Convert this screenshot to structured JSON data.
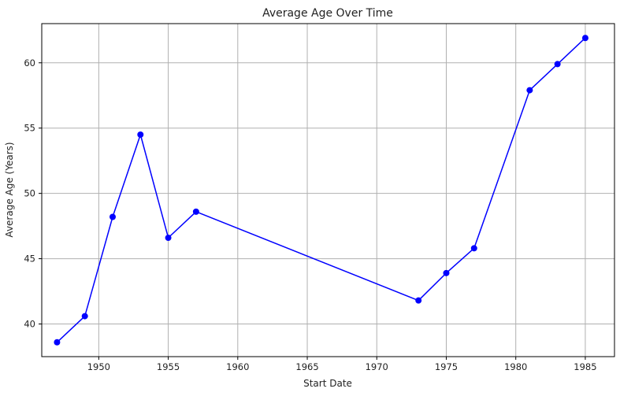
{
  "chart_data": {
    "type": "line",
    "title": "Average Age Over Time",
    "xlabel": "Start Date",
    "ylabel": "Average Age (Years)",
    "xlim": [
      1945.9,
      1987.1
    ],
    "ylim": [
      37.5,
      63.0
    ],
    "xticks": [
      1950,
      1955,
      1960,
      1965,
      1970,
      1975,
      1980,
      1985
    ],
    "yticks": [
      40,
      45,
      50,
      55,
      60
    ],
    "grid": true,
    "legend": "none",
    "series": [
      {
        "color": "#0000ff",
        "marker": "circle",
        "points": [
          {
            "x": 1947,
            "y": 38.6
          },
          {
            "x": 1949,
            "y": 40.6
          },
          {
            "x": 1951,
            "y": 48.2
          },
          {
            "x": 1953,
            "y": 54.5
          },
          {
            "x": 1955,
            "y": 46.6
          },
          {
            "x": 1957,
            "y": 48.6
          },
          {
            "x": 1973,
            "y": 41.8
          },
          {
            "x": 1975,
            "y": 43.9
          },
          {
            "x": 1977,
            "y": 45.8
          },
          {
            "x": 1981,
            "y": 57.9
          },
          {
            "x": 1983,
            "y": 59.9
          },
          {
            "x": 1985,
            "y": 61.9
          }
        ]
      }
    ]
  }
}
